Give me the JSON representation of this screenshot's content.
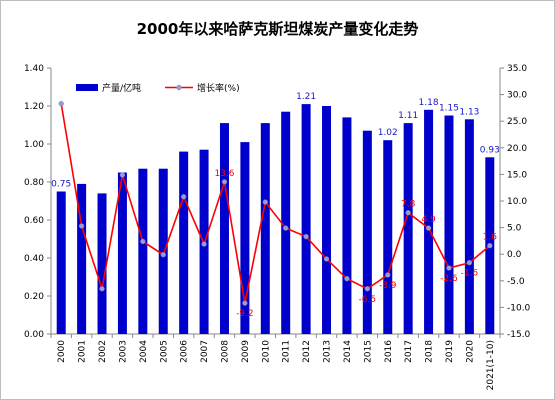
{
  "chart_data": {
    "type": "bar+line",
    "title": "2000年以来哈萨克斯坦煤炭产量变化走势",
    "categories": [
      "2000",
      "2001",
      "2002",
      "2003",
      "2004",
      "2005",
      "2006",
      "2007",
      "2008",
      "2009",
      "2010",
      "2011",
      "2012",
      "2013",
      "2014",
      "2015",
      "2016",
      "2017",
      "2018",
      "2019",
      "2020",
      "2021(1-10)"
    ],
    "series": [
      {
        "name": "产量/亿吨",
        "type": "bar",
        "axis": "left",
        "color": "#0000cc",
        "values": [
          0.75,
          0.79,
          0.74,
          0.85,
          0.87,
          0.87,
          0.96,
          0.97,
          1.11,
          1.01,
          1.11,
          1.17,
          1.21,
          1.2,
          1.14,
          1.07,
          1.02,
          1.11,
          1.18,
          1.15,
          1.13,
          0.93
        ],
        "labels": [
          {
            "index": 0,
            "text": "0.75"
          },
          {
            "index": 12,
            "text": "1.21"
          },
          {
            "index": 16,
            "text": "1.02"
          },
          {
            "index": 17,
            "text": "1.11"
          },
          {
            "index": 18,
            "text": "1.18"
          },
          {
            "index": 19,
            "text": "1.15"
          },
          {
            "index": 20,
            "text": "1.13"
          },
          {
            "index": 21,
            "text": "0.93"
          }
        ]
      },
      {
        "name": "增长率(%)",
        "type": "line",
        "axis": "right",
        "color": "#ff0000",
        "values": [
          28.3,
          5.3,
          -6.5,
          14.9,
          2.4,
          -0.1,
          10.8,
          1.9,
          13.6,
          -9.2,
          9.8,
          4.9,
          3.3,
          -0.9,
          -4.6,
          -6.5,
          -3.9,
          7.8,
          4.9,
          -2.6,
          -1.6,
          1.6
        ],
        "labels": [
          {
            "index": 8,
            "text": "13.6"
          },
          {
            "index": 9,
            "text": "-9.2"
          },
          {
            "index": 15,
            "text": "-6.5"
          },
          {
            "index": 16,
            "text": "-3.9"
          },
          {
            "index": 17,
            "text": "7.8"
          },
          {
            "index": 18,
            "text": "4.9"
          },
          {
            "index": 19,
            "text": "-2.6"
          },
          {
            "index": 20,
            "text": "-1.6"
          },
          {
            "index": 21,
            "text": "1.6"
          }
        ]
      }
    ],
    "y_left": {
      "range": [
        0,
        1.4
      ],
      "ticks": [
        "0.00",
        "0.20",
        "0.40",
        "0.60",
        "0.80",
        "1.00",
        "1.20",
        "1.40"
      ]
    },
    "y_right": {
      "range": [
        -15,
        35
      ],
      "ticks": [
        "-15.0",
        "-10.0",
        "-5.0",
        "0.0",
        "5.0",
        "10.0",
        "15.0",
        "20.0",
        "25.0",
        "30.0",
        "35.0"
      ]
    },
    "grid": false,
    "legend_position": "top-left"
  }
}
